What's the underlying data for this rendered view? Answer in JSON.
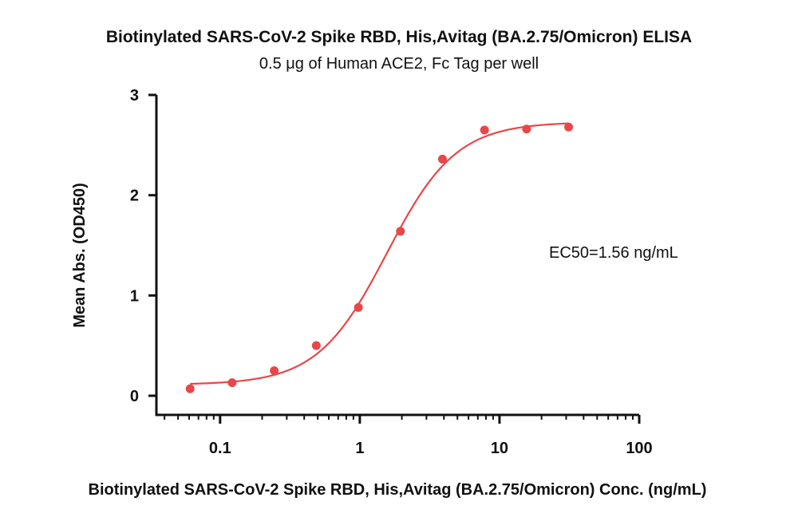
{
  "chart_data": {
    "type": "scatter",
    "title": "Biotinylated SARS-CoV-2 Spike RBD, His,Avitag (BA.2.75/Omicron) ELISA",
    "subtitle": "0.5 μg of Human ACE2, Fc Tag per well",
    "xlabel": "Biotinylated SARS-CoV-2 Spike RBD, His,Avitag (BA.2.75/Omicron) Conc. (ng/mL)",
    "ylabel": "Mean Abs. (OD450)",
    "x_scale": "log",
    "xlim": [
      0.035,
      100
    ],
    "ylim": [
      0,
      3
    ],
    "x_ticks": [
      0.1,
      1,
      10,
      100
    ],
    "x_tick_labels": [
      "0.1",
      "1",
      "10",
      "100"
    ],
    "y_ticks": [
      0,
      1,
      2,
      3
    ],
    "y_tick_labels": [
      "0",
      "1",
      "2",
      "3"
    ],
    "grid": false,
    "legend": "none",
    "color": "#e8474a",
    "annotation": "EC50=1.56 ng/mL",
    "series": [
      {
        "x": [
          0.061,
          0.122,
          0.244,
          0.488,
          0.977,
          1.953,
          3.906,
          7.813,
          15.625,
          31.25
        ],
        "y": [
          0.07,
          0.13,
          0.25,
          0.5,
          0.88,
          1.64,
          2.36,
          2.65,
          2.66,
          2.68
        ]
      }
    ],
    "fit": {
      "type": "4PL",
      "bottom": 0.11,
      "top": 2.73,
      "ec50": 1.56,
      "hill": 1.75
    }
  }
}
